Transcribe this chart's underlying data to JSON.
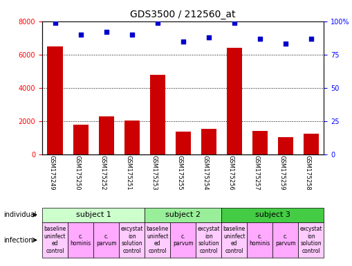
{
  "title": "GDS3500 / 212560_at",
  "samples": [
    "GSM175249",
    "GSM175250",
    "GSM175252",
    "GSM175251",
    "GSM175253",
    "GSM175255",
    "GSM175254",
    "GSM175256",
    "GSM175257",
    "GSM175259",
    "GSM175258"
  ],
  "counts": [
    6500,
    1800,
    2300,
    2050,
    4800,
    1350,
    1550,
    6400,
    1400,
    1050,
    1250
  ],
  "percentile_ranks": [
    99,
    90,
    92,
    90,
    99,
    85,
    88,
    99,
    87,
    83,
    87
  ],
  "ylim_left": [
    0,
    8000
  ],
  "ylim_right": [
    0,
    100
  ],
  "yticks_left": [
    0,
    2000,
    4000,
    6000,
    8000
  ],
  "yticks_right": [
    0,
    25,
    50,
    75,
    100
  ],
  "bar_color": "#cc0000",
  "scatter_color": "#0000cc",
  "subjects": [
    {
      "label": "subject 1",
      "start": 0,
      "end": 4,
      "color": "#ccffcc"
    },
    {
      "label": "subject 2",
      "start": 4,
      "end": 7,
      "color": "#99ee99"
    },
    {
      "label": "subject 3",
      "start": 7,
      "end": 11,
      "color": "#44cc44"
    }
  ],
  "inf_labels": [
    [
      "baseline",
      "uninfect",
      "ed",
      "control"
    ],
    [
      "c.",
      "hominis"
    ],
    [
      "c.",
      "parvum"
    ],
    [
      "excystat",
      "ion",
      "solution",
      "control"
    ],
    [
      "baseline",
      "uninfect",
      "ed",
      "control"
    ],
    [
      "c.",
      "parvum"
    ],
    [
      "excystat",
      "ion",
      "solution",
      "control"
    ],
    [
      "baseline",
      "uninfect",
      "ed",
      "control"
    ],
    [
      "c.",
      "hominis"
    ],
    [
      "c.",
      "parvum"
    ],
    [
      "excystat",
      "ion",
      "solution",
      "control"
    ]
  ],
  "inf_colors": [
    "#ffccff",
    "#ffaaff",
    "#ffaaff",
    "#ffccff",
    "#ffccff",
    "#ffaaff",
    "#ffccff",
    "#ffccff",
    "#ffaaff",
    "#ffaaff",
    "#ffccff"
  ],
  "xlabel_rotation": -90,
  "tick_label_fontsize": 6,
  "subject_label_fontsize": 8,
  "infection_label_fontsize": 5.5,
  "title_fontsize": 10,
  "legend_fontsize": 7,
  "background_color": "#ffffff"
}
